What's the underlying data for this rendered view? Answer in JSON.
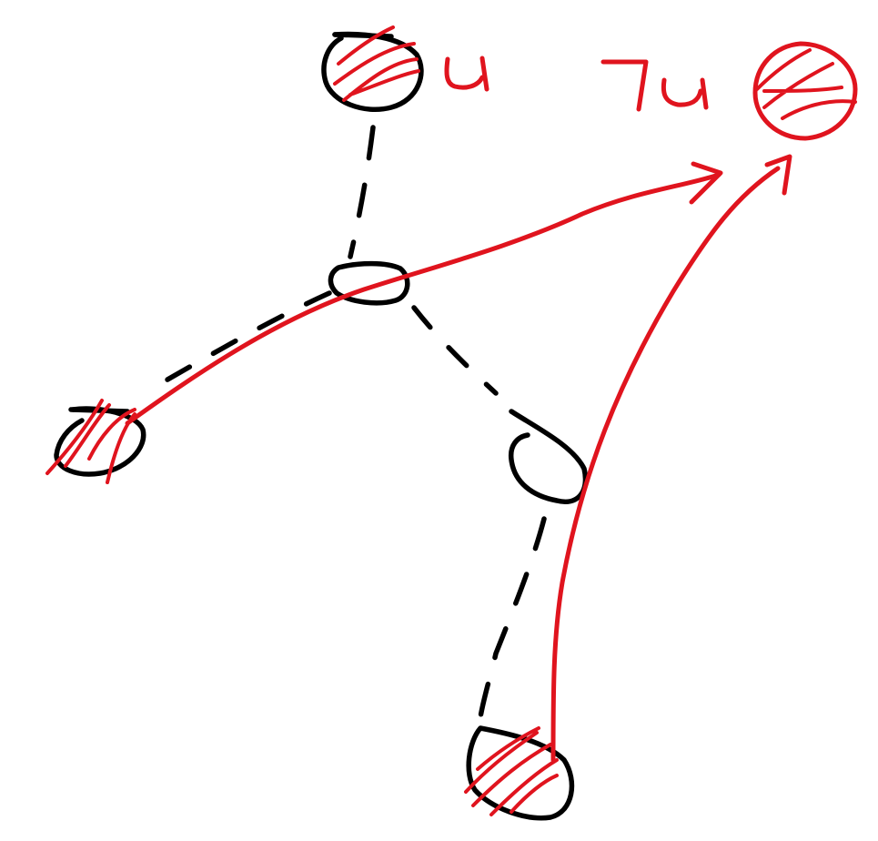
{
  "drawing": {
    "kind": "handwritten sketch",
    "colors": {
      "ink": "#000000",
      "highlight": "#e0141e",
      "background": "#ffffff"
    },
    "labels": {
      "top_node": "u",
      "target_node": "¬u"
    },
    "nodes": [
      {
        "id": "top-node",
        "label": "u",
        "crossed_out": true
      },
      {
        "id": "center-node",
        "crossed_out": false
      },
      {
        "id": "left-node",
        "crossed_out": true
      },
      {
        "id": "right-node",
        "crossed_out": false
      },
      {
        "id": "bottom-node",
        "crossed_out": true
      },
      {
        "id": "target-node",
        "label": "¬u",
        "crossed_out": true
      }
    ],
    "edges": [
      {
        "from": "top-node",
        "to": "center-node",
        "style": "dashed"
      },
      {
        "from": "center-node",
        "to": "left-node",
        "style": "dashed"
      },
      {
        "from": "center-node",
        "to": "right-node",
        "style": "dashed"
      },
      {
        "from": "right-node",
        "to": "bottom-node",
        "style": "dashed"
      }
    ],
    "arrows": [
      {
        "from": "left-node",
        "to": "target-node",
        "style": "solid",
        "color": "highlight"
      },
      {
        "from": "bottom-node",
        "to": "target-node",
        "style": "solid",
        "color": "highlight"
      }
    ]
  }
}
